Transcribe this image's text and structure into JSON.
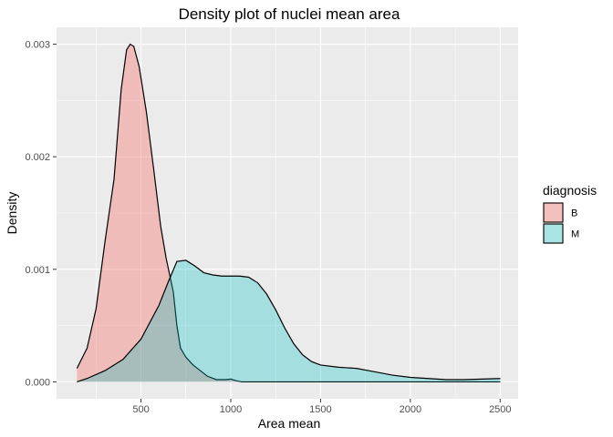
{
  "chart_data": {
    "type": "area",
    "subtype": "density",
    "title": "Density plot of nuclei mean area",
    "xlabel": "Area mean",
    "ylabel": "Density",
    "xlim": [
      30,
      2600
    ],
    "ylim": [
      -0.00015,
      0.00315
    ],
    "xticks": [
      500,
      1000,
      1500,
      2000,
      2500
    ],
    "xtick_labels": [
      "500",
      "1000",
      "1500",
      "2000",
      "2500"
    ],
    "yticks": [
      0,
      0.001,
      0.002,
      0.003
    ],
    "ytick_labels": [
      "0.000",
      "0.001",
      "0.002",
      "0.003"
    ],
    "grid": true,
    "legend": {
      "title": "diagnosis",
      "position": "right"
    },
    "series": [
      {
        "name": "B",
        "color": "#F8766D",
        "fill_opacity": 0.4,
        "points": [
          [
            143.5,
            0.00012
          ],
          [
            200,
            0.0003
          ],
          [
            250,
            0.00065
          ],
          [
            300,
            0.00125
          ],
          [
            350,
            0.0018
          ],
          [
            390,
            0.0026
          ],
          [
            420,
            0.00295
          ],
          [
            440,
            0.003
          ],
          [
            460,
            0.00298
          ],
          [
            490,
            0.0028
          ],
          [
            530,
            0.0024
          ],
          [
            570,
            0.0019
          ],
          [
            610,
            0.00138
          ],
          [
            640,
            0.0011
          ],
          [
            680,
            0.0008
          ],
          [
            700,
            0.0005
          ],
          [
            720,
            0.0003
          ],
          [
            750,
            0.00022
          ],
          [
            790,
            0.00015
          ],
          [
            830,
            0.0001
          ],
          [
            870,
            5e-05
          ],
          [
            920,
            2e-05
          ],
          [
            970,
            2e-05
          ],
          [
            1000,
            2.5e-05
          ],
          [
            1030,
            1e-05
          ],
          [
            1060,
            0.0
          ],
          [
            1500,
            0.0
          ],
          [
            2000,
            0.0
          ],
          [
            2501,
            0.0
          ]
        ]
      },
      {
        "name": "M",
        "color": "#00BFC4",
        "fill_opacity": 0.3,
        "points": [
          [
            143.5,
            0.0
          ],
          [
            200,
            3e-05
          ],
          [
            300,
            0.0001
          ],
          [
            400,
            0.0002
          ],
          [
            500,
            0.00038
          ],
          [
            600,
            0.00068
          ],
          [
            650,
            0.00088
          ],
          [
            700,
            0.00107
          ],
          [
            750,
            0.00108
          ],
          [
            800,
            0.00103
          ],
          [
            850,
            0.00097
          ],
          [
            900,
            0.00095
          ],
          [
            950,
            0.00094
          ],
          [
            1000,
            0.00094
          ],
          [
            1050,
            0.00094
          ],
          [
            1100,
            0.00093
          ],
          [
            1150,
            0.00088
          ],
          [
            1200,
            0.00078
          ],
          [
            1250,
            0.00064
          ],
          [
            1300,
            0.00048
          ],
          [
            1350,
            0.00034
          ],
          [
            1400,
            0.00024
          ],
          [
            1450,
            0.00018
          ],
          [
            1500,
            0.00015
          ],
          [
            1600,
            0.00013
          ],
          [
            1700,
            0.00012
          ],
          [
            1800,
            9e-05
          ],
          [
            1900,
            6e-05
          ],
          [
            2000,
            4e-05
          ],
          [
            2100,
            3e-05
          ],
          [
            2200,
            2e-05
          ],
          [
            2300,
            2e-05
          ],
          [
            2400,
            2.5e-05
          ],
          [
            2501,
            3e-05
          ]
        ]
      }
    ]
  }
}
